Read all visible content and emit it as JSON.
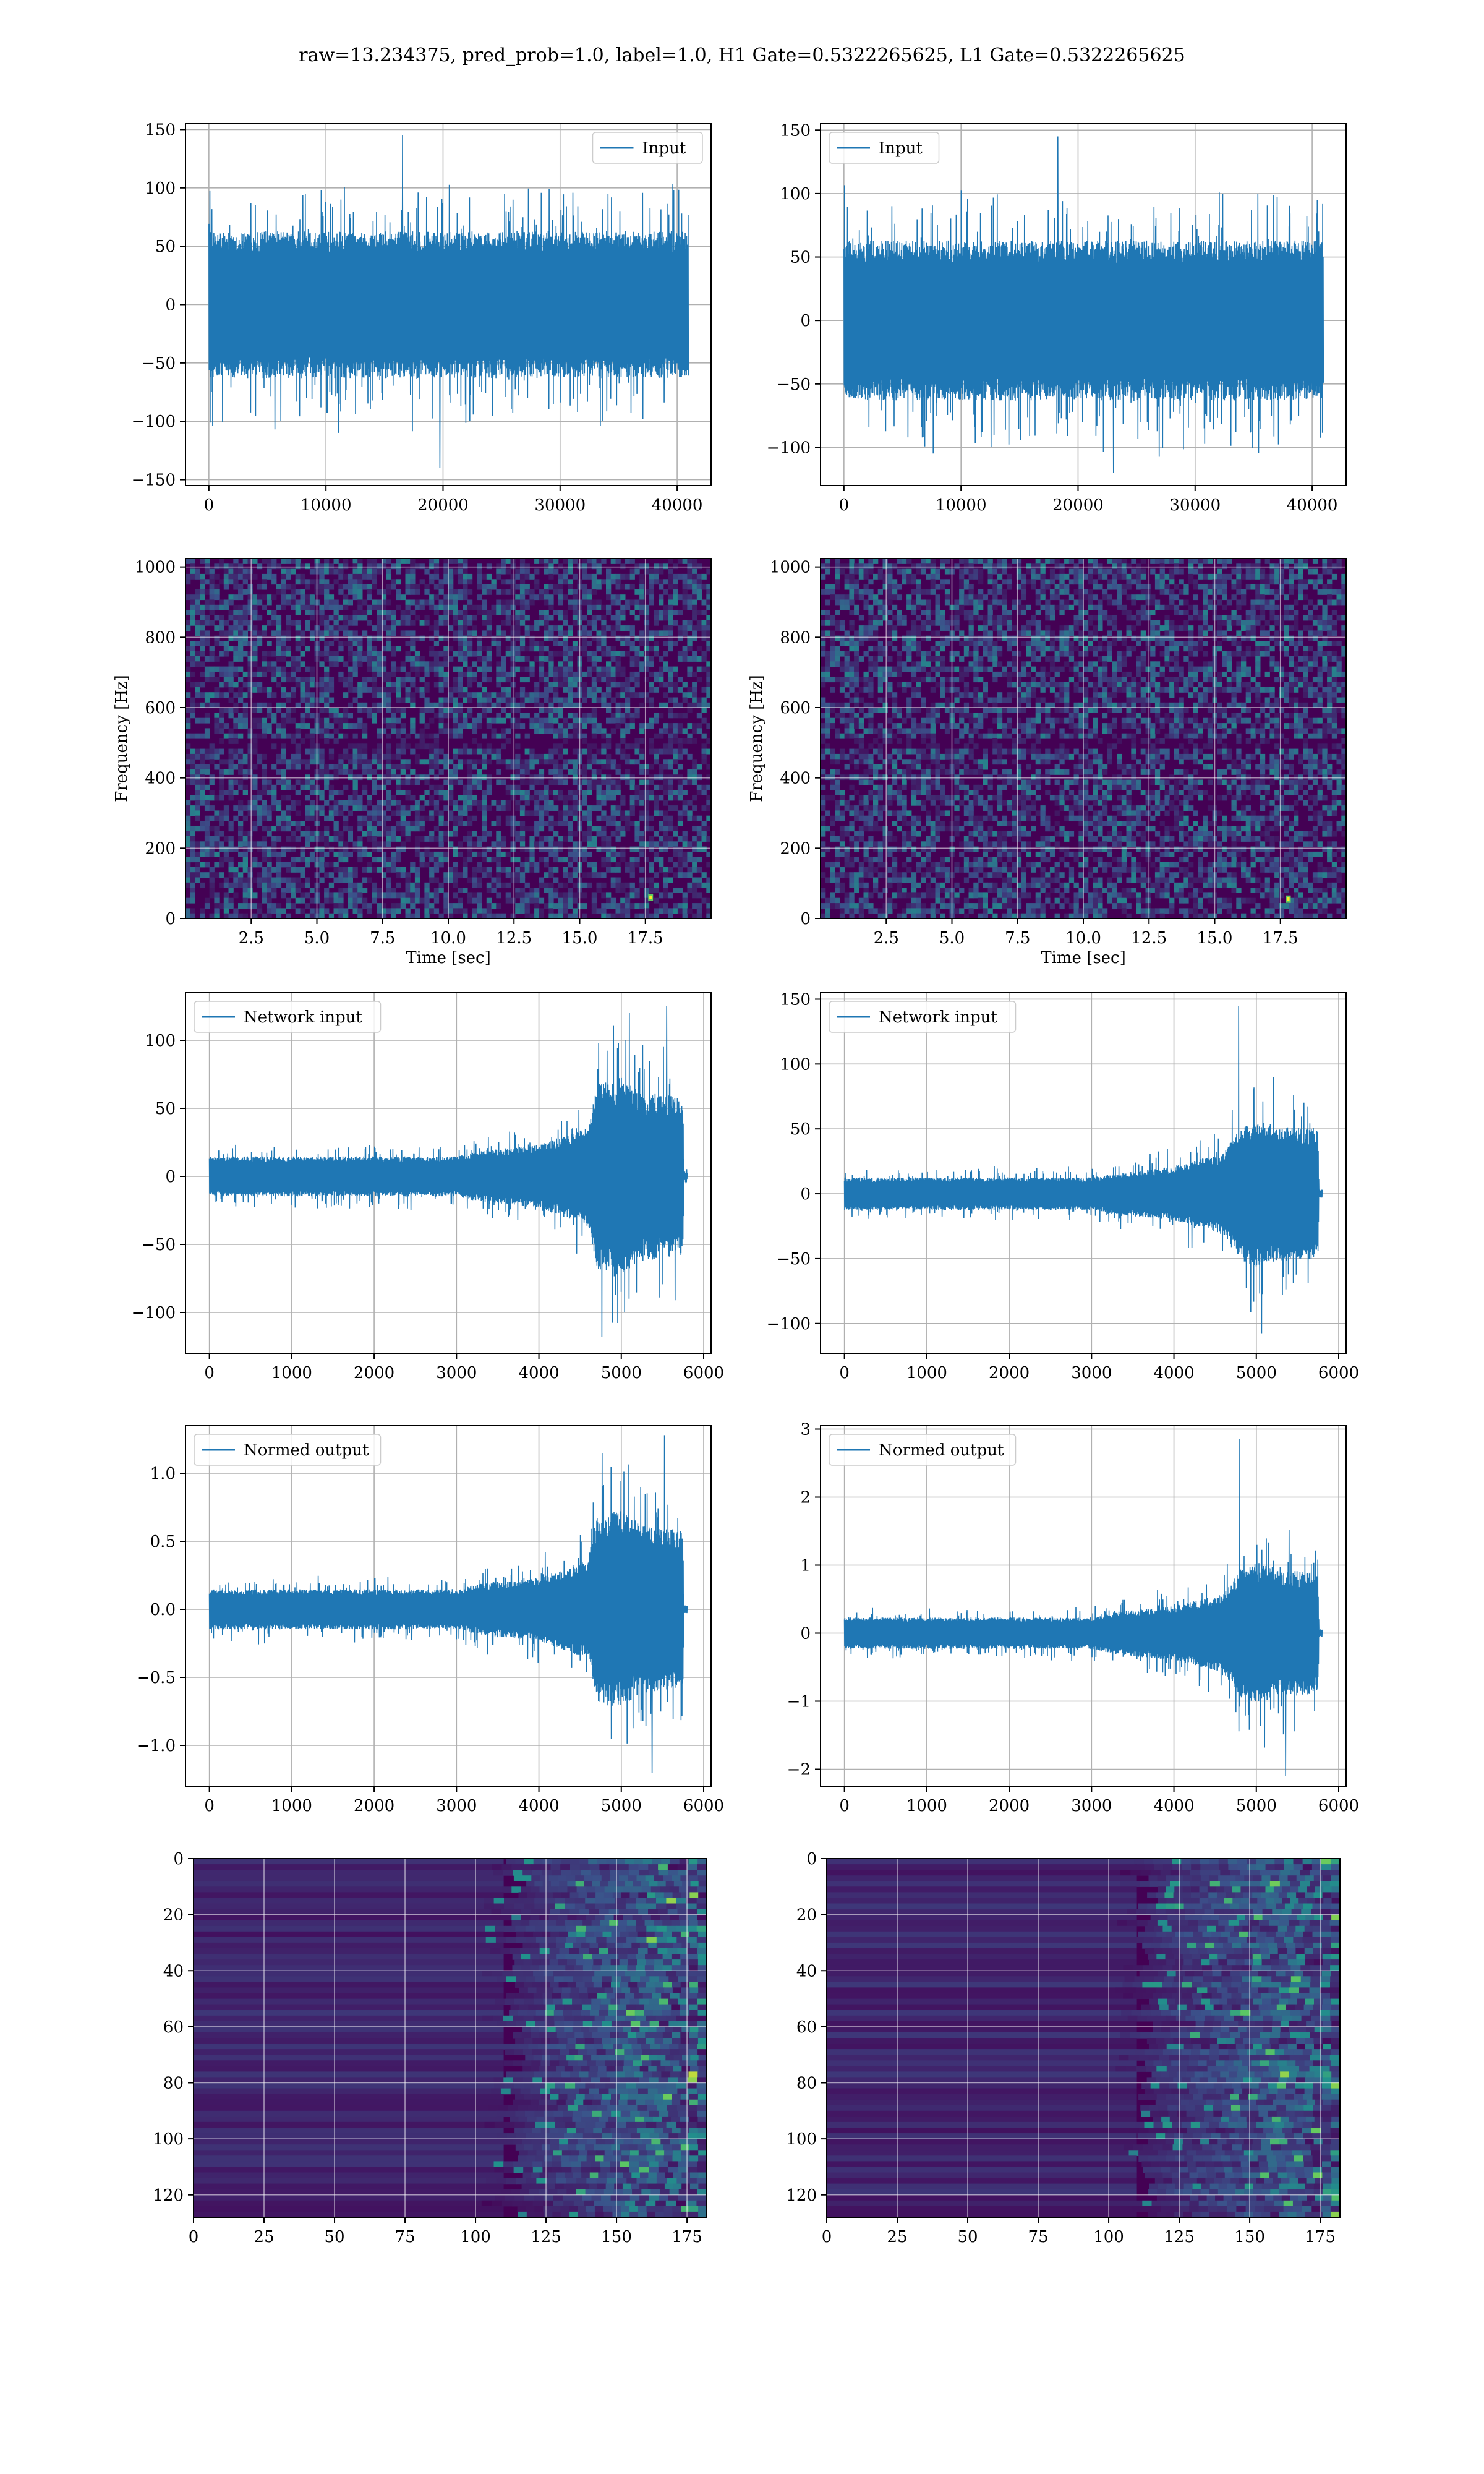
{
  "title": "raw=13.234375, pred_prob=1.0, label=1.0, H1 Gate=0.5322265625, L1 Gate=0.5322265625",
  "colors": {
    "line": "#1f77b4",
    "grid": "#b0b0b0",
    "viridis_dark": "#440154",
    "viridis_mid": "#3b528b",
    "viridis_teal": "#21918c",
    "viridis_green": "#5ec962",
    "viridis_yellow": "#fde725"
  },
  "chart_data": [
    {
      "id": "h1-input",
      "type": "line",
      "legend": "Input",
      "legend_loc": "upper right",
      "grid": true,
      "xlim": [
        -2000,
        42900
      ],
      "ylim": [
        -155,
        155
      ],
      "xticks": [
        0,
        10000,
        20000,
        30000,
        40000
      ],
      "yticks": [
        -150,
        -100,
        -50,
        0,
        50,
        100,
        150
      ],
      "x_range": [
        0,
        40960
      ],
      "envelope": [
        [
          0,
          60
        ],
        [
          40960,
          60
        ]
      ],
      "spike_max": 145,
      "spike_min": -140
    },
    {
      "id": "l1-input",
      "type": "line",
      "legend": "Input",
      "legend_loc": "upper left",
      "grid": true,
      "xlim": [
        -2000,
        42900
      ],
      "ylim": [
        -130,
        155
      ],
      "xticks": [
        0,
        10000,
        20000,
        30000,
        40000
      ],
      "yticks": [
        -100,
        -50,
        0,
        50,
        100,
        150
      ],
      "x_range": [
        0,
        40960
      ],
      "envelope": [
        [
          0,
          60
        ],
        [
          40960,
          60
        ]
      ],
      "spike_max": 145,
      "spike_min": -120
    },
    {
      "id": "h1-spectrogram",
      "type": "heatmap",
      "colormap": "viridis",
      "grid": true,
      "xlabel": "Time [sec]",
      "ylabel": "Frequency [Hz]",
      "xlim": [
        0,
        20
      ],
      "ylim": [
        0,
        1024
      ],
      "xticks": [
        2.5,
        5.0,
        7.5,
        10.0,
        12.5,
        15.0,
        17.5
      ],
      "yticks": [
        0,
        200,
        400,
        600,
        800,
        1000
      ],
      "hotspot": {
        "t": 17.7,
        "f": 60
      }
    },
    {
      "id": "l1-spectrogram",
      "type": "heatmap",
      "colormap": "viridis",
      "grid": true,
      "xlabel": "Time [sec]",
      "ylabel": "Frequency [Hz]",
      "xlim": [
        0,
        20
      ],
      "ylim": [
        0,
        1024
      ],
      "xticks": [
        2.5,
        5.0,
        7.5,
        10.0,
        12.5,
        15.0,
        17.5
      ],
      "yticks": [
        0,
        200,
        400,
        600,
        800,
        1000
      ],
      "hotspot": {
        "t": 17.8,
        "f": 55
      }
    },
    {
      "id": "h1-network-input",
      "type": "line",
      "legend": "Network input",
      "legend_loc": "upper left",
      "grid": true,
      "xlim": [
        -290,
        6090
      ],
      "ylim": [
        -130,
        135
      ],
      "xticks": [
        0,
        1000,
        2000,
        3000,
        4000,
        5000,
        6000
      ],
      "yticks": [
        -100,
        -50,
        0,
        50,
        100
      ],
      "x_range": [
        0,
        5800
      ],
      "signal_end": 5750,
      "envelope": [
        [
          0,
          14
        ],
        [
          3000,
          14
        ],
        [
          3300,
          18
        ],
        [
          4000,
          22
        ],
        [
          4600,
          35
        ],
        [
          4700,
          65
        ],
        [
          5000,
          70
        ],
        [
          5200,
          60
        ],
        [
          5750,
          55
        ],
        [
          5760,
          3
        ],
        [
          5800,
          3
        ]
      ],
      "spike_max": 125,
      "spike_min": -118
    },
    {
      "id": "l1-network-input",
      "type": "line",
      "legend": "Network input",
      "legend_loc": "upper left",
      "grid": true,
      "xlim": [
        -290,
        6090
      ],
      "ylim": [
        -123,
        155
      ],
      "xticks": [
        0,
        1000,
        2000,
        3000,
        4000,
        5000,
        6000
      ],
      "yticks": [
        -100,
        -50,
        0,
        50,
        100,
        150
      ],
      "x_range": [
        0,
        5800
      ],
      "signal_end": 5750,
      "envelope": [
        [
          0,
          12
        ],
        [
          3000,
          12
        ],
        [
          3300,
          15
        ],
        [
          4000,
          20
        ],
        [
          4600,
          30
        ],
        [
          4800,
          48
        ],
        [
          5000,
          55
        ],
        [
          5200,
          50
        ],
        [
          5750,
          48
        ],
        [
          5760,
          3
        ],
        [
          5800,
          3
        ]
      ],
      "spike_max": 145,
      "spike_min": -108
    },
    {
      "id": "h1-normed-output",
      "type": "line",
      "legend": "Normed output",
      "legend_loc": "upper left",
      "grid": true,
      "xlim": [
        -290,
        6090
      ],
      "ylim": [
        -1.3,
        1.35
      ],
      "xticks": [
        0,
        1000,
        2000,
        3000,
        4000,
        5000,
        6000
      ],
      "yticks": [
        -1.0,
        -0.5,
        0.0,
        0.5,
        1.0
      ],
      "x_range": [
        0,
        5800
      ],
      "signal_end": 5750,
      "envelope": [
        [
          0,
          0.14
        ],
        [
          3000,
          0.14
        ],
        [
          3300,
          0.18
        ],
        [
          4000,
          0.22
        ],
        [
          4600,
          0.35
        ],
        [
          4700,
          0.65
        ],
        [
          5000,
          0.7
        ],
        [
          5200,
          0.6
        ],
        [
          5750,
          0.55
        ],
        [
          5760,
          0.03
        ],
        [
          5800,
          0.03
        ]
      ],
      "spike_max": 1.28,
      "spike_min": -1.2
    },
    {
      "id": "l1-normed-output",
      "type": "line",
      "legend": "Normed output",
      "legend_loc": "upper left",
      "grid": true,
      "xlim": [
        -290,
        6090
      ],
      "ylim": [
        -2.25,
        3.05
      ],
      "xticks": [
        0,
        1000,
        2000,
        3000,
        4000,
        5000,
        6000
      ],
      "yticks": [
        -2,
        -1,
        0,
        1,
        2,
        3
      ],
      "x_range": [
        0,
        5800
      ],
      "signal_end": 5750,
      "envelope": [
        [
          0,
          0.22
        ],
        [
          3000,
          0.22
        ],
        [
          3300,
          0.3
        ],
        [
          4000,
          0.38
        ],
        [
          4600,
          0.55
        ],
        [
          4800,
          0.9
        ],
        [
          5000,
          1.0
        ],
        [
          5200,
          0.9
        ],
        [
          5750,
          0.85
        ],
        [
          5760,
          0.05
        ],
        [
          5800,
          0.05
        ]
      ],
      "spike_max": 2.85,
      "spike_min": -2.1
    },
    {
      "id": "h1-feature-map",
      "type": "heatmap",
      "colormap": "viridis",
      "grid": true,
      "xlim": [
        0,
        182
      ],
      "ylim": [
        128,
        0
      ],
      "xticks": [
        0,
        25,
        50,
        75,
        100,
        125,
        150,
        175
      ],
      "yticks": [
        0,
        20,
        40,
        60,
        80,
        100,
        120
      ],
      "activity_onset": 110
    },
    {
      "id": "l1-feature-map",
      "type": "heatmap",
      "colormap": "viridis",
      "grid": true,
      "xlim": [
        0,
        182
      ],
      "ylim": [
        128,
        0
      ],
      "xticks": [
        0,
        25,
        50,
        75,
        100,
        125,
        150,
        175
      ],
      "yticks": [
        0,
        20,
        40,
        60,
        80,
        100,
        120
      ],
      "activity_onset": 110
    }
  ]
}
